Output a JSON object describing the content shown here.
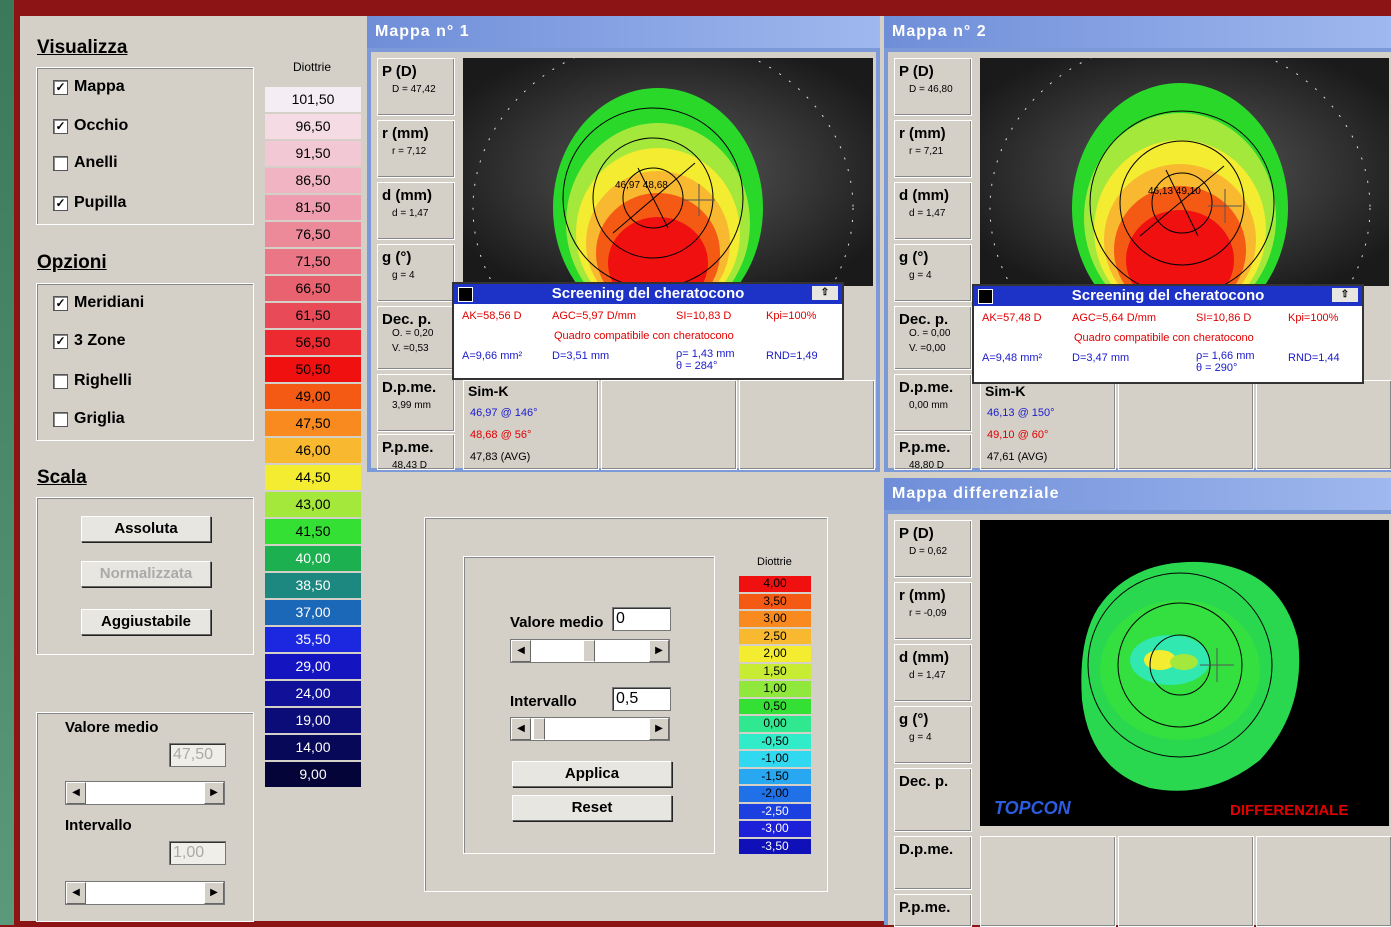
{
  "visualizza": {
    "title": "Visualizza",
    "items": [
      {
        "label": "Mappa",
        "checked": true
      },
      {
        "label": "Occhio",
        "checked": true
      },
      {
        "label": "Anelli",
        "checked": false
      },
      {
        "label": "Pupilla",
        "checked": true
      }
    ]
  },
  "opzioni": {
    "title": "Opzioni",
    "items": [
      {
        "label": "Meridiani",
        "checked": true
      },
      {
        "label": "3 Zone",
        "checked": true
      },
      {
        "label": "Righelli",
        "checked": false
      },
      {
        "label": "Griglia",
        "checked": false
      }
    ]
  },
  "scala": {
    "title": "Scala",
    "assoluta": "Assoluta",
    "normalizzata": "Normalizzata",
    "aggiustabile": "Aggiustabile"
  },
  "left_controls": {
    "valore_medio_label": "Valore medio",
    "valore_medio": "47,50",
    "intervallo_label": "Intervallo",
    "intervallo": "1,00"
  },
  "scale1": {
    "header": "Diottrie",
    "items": [
      {
        "v": "101,50",
        "c": "#f4eef4"
      },
      {
        "v": "96,50",
        "c": "#f4dbe4"
      },
      {
        "v": "91,50",
        "c": "#f2c8d4"
      },
      {
        "v": "86,50",
        "c": "#f0b4c2"
      },
      {
        "v": "81,50",
        "c": "#ee9eae"
      },
      {
        "v": "76,50",
        "c": "#ec8a9a"
      },
      {
        "v": "71,50",
        "c": "#ea7686"
      },
      {
        "v": "66,50",
        "c": "#e86270"
      },
      {
        "v": "61,50",
        "c": "#e84a58"
      },
      {
        "v": "56,50",
        "c": "#ec2a30"
      },
      {
        "v": "50,50",
        "c": "#f01010"
      },
      {
        "v": "49,00",
        "c": "#f45a14"
      },
      {
        "v": "47,50",
        "c": "#f88a20"
      },
      {
        "v": "46,00",
        "c": "#f8b830"
      },
      {
        "v": "44,50",
        "c": "#f4ec30"
      },
      {
        "v": "43,00",
        "c": "#a4e83c"
      },
      {
        "v": "41,50",
        "c": "#34e034"
      },
      {
        "v": "40,00",
        "c": "#1cb050"
      },
      {
        "v": "38,50",
        "c": "#1c8880"
      },
      {
        "v": "37,00",
        "c": "#1c68b8"
      },
      {
        "v": "35,50",
        "c": "#1c28e0"
      },
      {
        "v": "29,00",
        "c": "#1414c0"
      },
      {
        "v": "24,00",
        "c": "#101098"
      },
      {
        "v": "19,00",
        "c": "#0c0c78"
      },
      {
        "v": "14,00",
        "c": "#080858"
      },
      {
        "v": "9,00",
        "c": "#040438"
      }
    ]
  },
  "map1": {
    "title": "Mappa n° 1",
    "p_label": "P (D)",
    "p_val": "D = 47,42",
    "r_label": "r (mm)",
    "r_val": "r = 7,12",
    "d_label": "d (mm)",
    "d_val": "d = 1,47",
    "g_label": "g (°)",
    "g_val": "g = 4",
    "dec_label": "Dec. p.",
    "dec_o": "O. = 0,20",
    "dec_v": "V. =0,53",
    "dpme_label": "D.p.me.",
    "dpme_val": "3,99 mm",
    "ppme_label": "P.p.me.",
    "ppme_val": "48,43 D",
    "center_label": "46,97 48,68",
    "screening": {
      "title": "Screening del cheratocono",
      "ak": "AK=58,56 D",
      "agc": "AGC=5,97 D/mm",
      "si": "SI=10,83 D",
      "kpi": "Kpi=100%",
      "quadro": "Quadro compatibile con cheratocono",
      "a": "A=9,66 mm²",
      "d": "D=3,51 mm",
      "rho": "ρ= 1,43 mm",
      "theta": "θ = 284°",
      "rnd": "RND=1,49"
    },
    "simk": {
      "label": "Sim-K",
      "k1": "46,97 @ 146°",
      "k2": "48,68 @ 56°",
      "avg": "47,83 (AVG)"
    }
  },
  "map2": {
    "title": "Mappa n° 2",
    "p_label": "P (D)",
    "p_val": "D = 46,80",
    "r_label": "r (mm)",
    "r_val": "r = 7,21",
    "d_label": "d (mm)",
    "d_val": "d = 1,47",
    "g_label": "g (°)",
    "g_val": "g = 4",
    "dec_label": "Dec. p.",
    "dec_o": "O. = 0,00",
    "dec_v": "V. =0,00",
    "dpme_label": "D.p.me.",
    "dpme_val": "0,00 mm",
    "ppme_label": "P.p.me.",
    "ppme_val": "48,80 D",
    "center_label": "46,13 49,10",
    "screening": {
      "title": "Screening del cheratocono",
      "ak": "AK=57,48 D",
      "agc": "AGC=5,64 D/mm",
      "si": "SI=10,86 D",
      "kpi": "Kpi=100%",
      "quadro": "Quadro compatibile con cheratocono",
      "a": "A=9,48 mm²",
      "d": "D=3,47 mm",
      "rho": "ρ= 1,66 mm",
      "theta": "θ = 290°",
      "rnd": "RND=1,44"
    },
    "simk": {
      "label": "Sim-K",
      "k1": "46,13 @ 150°",
      "k2": "49,10 @ 60°",
      "avg": "47,61 (AVG)"
    }
  },
  "diff": {
    "title": "Mappa differenziale",
    "p_label": "P (D)",
    "p_val": "D = 0,62",
    "r_label": "r (mm)",
    "r_val": "r = -0,09",
    "d_label": "d (mm)",
    "d_val": "d = 1,47",
    "g_label": "g (°)",
    "g_val": "g = 4",
    "dec_label": "Dec. p.",
    "dpme_label": "D.p.me.",
    "ppme_label": "P.p.me.",
    "brand": "TOPCON",
    "mode": "DIFFERENZIALE"
  },
  "center_controls": {
    "valore_medio_label": "Valore medio",
    "valore_medio": "0",
    "intervallo_label": "Intervallo",
    "intervallo": "0,5",
    "applica": "Applica",
    "reset": "Reset"
  },
  "scale2": {
    "header": "Diottrie",
    "items": [
      {
        "v": "4,00",
        "c": "#f01010"
      },
      {
        "v": "3,50",
        "c": "#f45a14"
      },
      {
        "v": "3,00",
        "c": "#f88a20"
      },
      {
        "v": "2,50",
        "c": "#f8b830"
      },
      {
        "v": "2,00",
        "c": "#f4ec30"
      },
      {
        "v": "1,50",
        "c": "#c8ec34"
      },
      {
        "v": "1,00",
        "c": "#90e83c"
      },
      {
        "v": "0,50",
        "c": "#34e034"
      },
      {
        "v": "0,00",
        "c": "#30e890"
      },
      {
        "v": "-0,50",
        "c": "#30ecc8"
      },
      {
        "v": "-1,00",
        "c": "#30d8f0"
      },
      {
        "v": "-1,50",
        "c": "#28a8f0"
      },
      {
        "v": "-2,00",
        "c": "#2070e8"
      },
      {
        "v": "-2,50",
        "c": "#1c40e0"
      },
      {
        "v": "-3,00",
        "c": "#1c20d8"
      },
      {
        "v": "-3,50",
        "c": "#1010b8"
      }
    ]
  }
}
